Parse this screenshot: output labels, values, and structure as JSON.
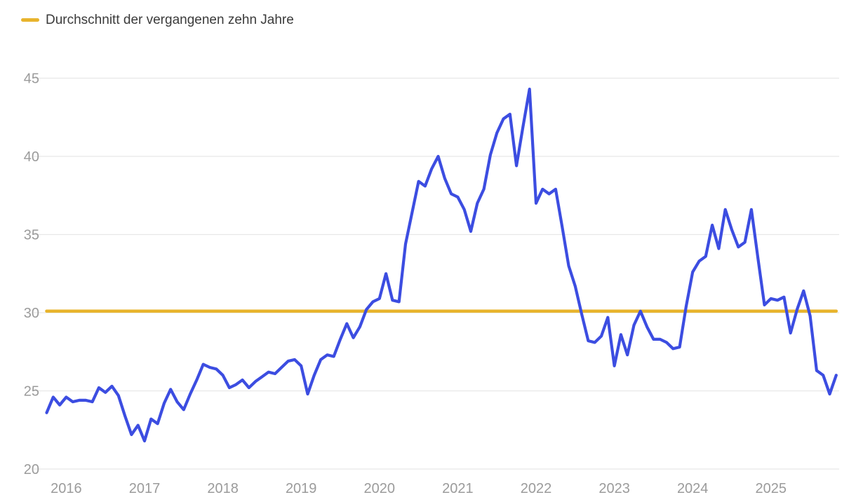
{
  "legend": {
    "label": "Durchschnitt der vergangenen zehn Jahre"
  },
  "colors": {
    "series_line": "#3c4de1",
    "average_line": "#e8b42d",
    "gridline": "#e8e8e8",
    "tick_label": "#9b9b9b",
    "legend_text": "#3b3b3b",
    "background": "#ffffff"
  },
  "chart_data": {
    "type": "line",
    "title": "",
    "legend_position": "top-left",
    "x_axis": {
      "tick_labels": [
        "2016",
        "2017",
        "2018",
        "2019",
        "2020",
        "2021",
        "2022",
        "2023",
        "2024",
        "2025"
      ],
      "frequency": "monthly",
      "start_month": "2015-10",
      "end_month": "2025-11"
    },
    "y_axis": {
      "ticks": [
        20,
        25,
        30,
        35,
        40,
        45
      ],
      "range": [
        20,
        45
      ],
      "grid": true
    },
    "series": [
      {
        "name": "Monatswerte",
        "type": "line",
        "color": "#3c4de1",
        "values": [
          23.6,
          24.6,
          24.1,
          24.6,
          24.3,
          24.4,
          24.4,
          24.3,
          25.2,
          24.9,
          25.3,
          24.7,
          23.4,
          22.2,
          22.8,
          21.8,
          23.2,
          22.9,
          24.2,
          25.1,
          24.3,
          23.8,
          24.8,
          25.7,
          26.7,
          26.5,
          26.4,
          26.0,
          25.2,
          25.4,
          25.7,
          25.2,
          25.6,
          25.9,
          26.2,
          26.1,
          26.5,
          26.9,
          27.0,
          26.6,
          24.8,
          26.0,
          27.0,
          27.3,
          27.2,
          28.3,
          29.3,
          28.4,
          29.1,
          30.2,
          30.7,
          30.9,
          32.5,
          30.8,
          30.7,
          34.4,
          36.4,
          38.4,
          38.1,
          39.2,
          40.0,
          38.6,
          37.6,
          37.4,
          36.6,
          35.2,
          37.0,
          37.9,
          40.1,
          41.5,
          42.4,
          42.7,
          39.4,
          41.9,
          44.3,
          37.0,
          37.9,
          37.6,
          37.9,
          35.5,
          33.0,
          31.7,
          29.9,
          28.2,
          28.1,
          28.5,
          29.7,
          26.6,
          28.6,
          27.3,
          29.2,
          30.1,
          29.1,
          28.3,
          28.3,
          28.1,
          27.7,
          27.8,
          30.4,
          32.6,
          33.3,
          33.6,
          35.6,
          34.1,
          36.6,
          35.3,
          34.2,
          34.5,
          36.6,
          33.5,
          30.5,
          30.9,
          30.8,
          31.0,
          28.7,
          30.2,
          31.4,
          29.8,
          26.3,
          26.0,
          24.8,
          26.0
        ]
      },
      {
        "name": "Durchschnitt der vergangenen zehn Jahre",
        "type": "reference-line",
        "color": "#e8b42d",
        "value": 30.1
      }
    ]
  }
}
